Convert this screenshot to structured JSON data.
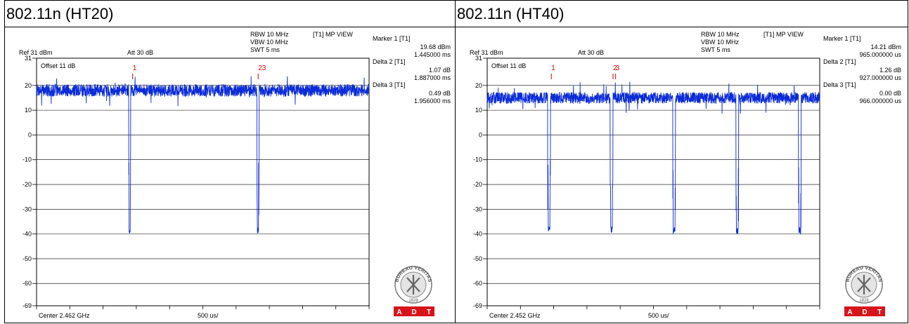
{
  "colors": {
    "trace": "#0a2bd6",
    "marker": "#d40000",
    "grid": "#000000",
    "adt_red": "#d8141b"
  },
  "panels": [
    {
      "title": "802.11n (HT20)",
      "settings": {
        "rbw": "RBW 10 MHz",
        "vbw": "VBW 10 MHz",
        "swt": "SWT 5 ms",
        "trace_label": "[T1] MP VIEW",
        "ref": "Ref 31 dBm",
        "att": "Att  30 dB",
        "offset": "Offset 11 dB"
      },
      "footer": {
        "center": "Center 2.462 GHz",
        "span": "500 us/"
      },
      "markers": [
        {
          "title": "Marker 1 [T1]",
          "line1": "19.68 dBm",
          "line2": "1.445000 ms"
        },
        {
          "title": "Delta 2 [T1]",
          "line1": "1.07 dB",
          "line2": "1.887000 ms"
        },
        {
          "title": "Delta 3 [T1]",
          "line1": "0.49 dB",
          "line2": "1.956000 ms"
        }
      ],
      "marker_flags": [
        {
          "label": "1",
          "t": 1.445
        },
        {
          "label": "23",
          "t": 3.332
        }
      ],
      "logo": {
        "text": "BUREAU VERITAS",
        "year": "1828",
        "adt": [
          "A",
          "D",
          "T"
        ]
      },
      "chart_data": {
        "type": "line",
        "x_unit": "ms",
        "xlim": [
          0,
          5
        ],
        "ylim": [
          -69,
          31
        ],
        "yticks": [
          31,
          20,
          10,
          0,
          -10,
          -20,
          -30,
          -40,
          -50,
          -60,
          -69
        ],
        "ytick_labels": [
          "31",
          "20",
          "10",
          "0",
          "-10",
          "-20",
          "-30",
          "-40",
          "-50",
          "-60",
          "-69"
        ],
        "baseline_dbm": 18,
        "noise_dbm": 2.5,
        "gap_bottom_dbm": -40,
        "gaps_ms": [
          1.4,
          3.33
        ],
        "gap_width_ms": 0.03,
        "seed": 7
      }
    },
    {
      "title": "802.11n (HT40)",
      "settings": {
        "rbw": "RBW 10 MHz",
        "vbw": "VBW 10 MHz",
        "swt": "SWT 5 ms",
        "trace_label": "[T1] MP VIEW",
        "ref": "Ref 31 dBm",
        "att": "Att  30 dB",
        "offset": "Offset 11 dB"
      },
      "footer": {
        "center": "Center 2.452 GHz",
        "span": "500 us/"
      },
      "markers": [
        {
          "title": "Marker 1 [T1]",
          "line1": "14.21 dBm",
          "line2": "965.000000 us"
        },
        {
          "title": "Delta 2 [T1]",
          "line1": "1.26 dB",
          "line2": "927.000000 us"
        },
        {
          "title": "Delta 3 [T1]",
          "line1": "0.00 dB",
          "line2": "966.000000 us"
        }
      ],
      "marker_flags": [
        {
          "label": "1",
          "t": 0.965
        },
        {
          "label": "2",
          "t": 1.892
        },
        {
          "label": "3",
          "t": 1.931
        }
      ],
      "logo": {
        "text": "BUREAU VERITAS",
        "year": "1828",
        "adt": [
          "A",
          "D",
          "T"
        ]
      },
      "chart_data": {
        "type": "line",
        "x_unit": "ms",
        "xlim": [
          0,
          5
        ],
        "ylim": [
          -69,
          31
        ],
        "yticks": [
          31,
          20,
          10,
          0,
          -10,
          -20,
          -30,
          -40,
          -50,
          -60,
          -69
        ],
        "ytick_labels": [
          "31",
          "20",
          "10",
          "0",
          "-10",
          "-20",
          "-30",
          "-40",
          "-50",
          "-60",
          "-69"
        ],
        "baseline_dbm": 15,
        "noise_dbm": 2.3,
        "gap_bottom_dbm": -40,
        "gaps_ms": [
          0.93,
          1.87,
          2.81,
          3.76,
          4.7
        ],
        "gap_width_ms": 0.04,
        "seed": 13
      }
    }
  ]
}
